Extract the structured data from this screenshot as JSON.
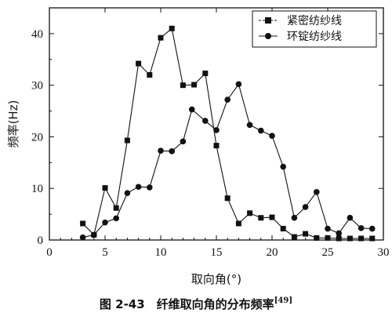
{
  "chart_data": {
    "type": "line",
    "title": "",
    "xlabel": "取向角(°)",
    "ylabel": "频率(Hz)",
    "xlim": [
      0,
      30
    ],
    "ylim": [
      0,
      45
    ],
    "xticks": [
      0,
      5,
      10,
      15,
      20,
      25,
      30
    ],
    "yticks": [
      0,
      10,
      20,
      30,
      40
    ],
    "grid": false,
    "legend_position": "top-right",
    "series": [
      {
        "name": "紧密纺纱线",
        "marker": "square",
        "x": [
          3,
          4,
          5,
          6,
          7,
          8,
          9,
          10,
          11,
          12,
          13,
          14,
          15,
          16,
          17,
          18,
          19,
          20,
          21,
          22,
          23,
          24,
          25,
          26,
          27,
          28,
          29
        ],
        "y": [
          3.2,
          1.0,
          10.1,
          6.2,
          19.3,
          34.2,
          32.0,
          39.2,
          41.0,
          30.0,
          30.1,
          32.3,
          18.3,
          8.1,
          3.2,
          5.2,
          4.3,
          4.4,
          2.2,
          0.6,
          1.2,
          0.4,
          0.4,
          0.3,
          0.3,
          0.3,
          0.3
        ]
      },
      {
        "name": "环锭纺纱线",
        "marker": "circle",
        "x": [
          3,
          4,
          5,
          6,
          7,
          8,
          9,
          10,
          11,
          12,
          12.8,
          14,
          15,
          16,
          17,
          18,
          19,
          20,
          21,
          22,
          23,
          24,
          25,
          26,
          27,
          28,
          29
        ],
        "y": [
          0.5,
          1.0,
          3.4,
          4.2,
          9.1,
          10.3,
          10.2,
          17.3,
          17.2,
          19.1,
          25.3,
          23.1,
          21.3,
          27.2,
          30.2,
          22.3,
          21.2,
          20.2,
          14.2,
          4.3,
          6.4,
          9.3,
          2.2,
          1.3,
          4.3,
          2.3,
          2.2
        ]
      }
    ]
  },
  "caption": {
    "label": "图 2-43　纤维取向角的分布频率",
    "ref": "[49]"
  }
}
